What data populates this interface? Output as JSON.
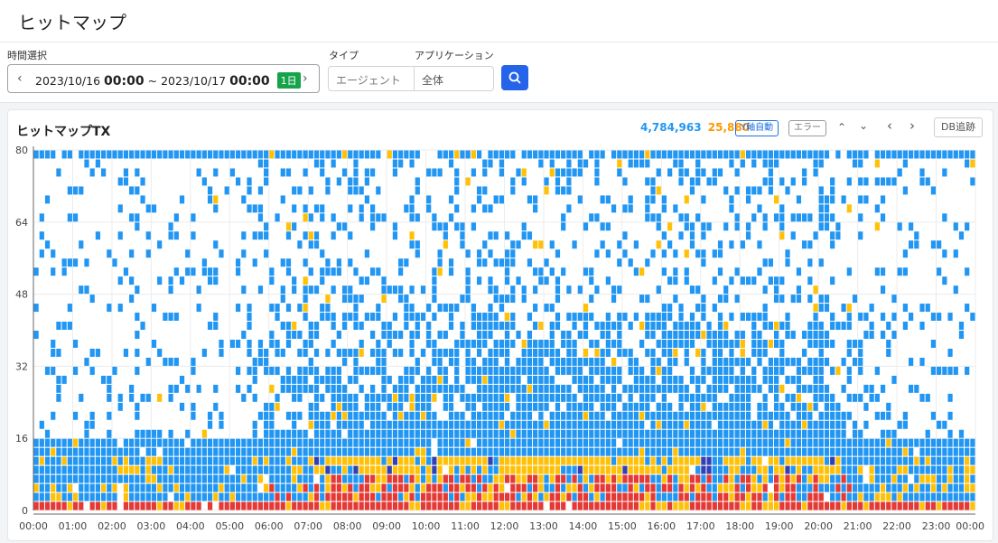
{
  "header": {
    "title": "ヒットマップ"
  },
  "filters": {
    "time_label": "時間選択",
    "start_date": "2023/10/16",
    "start_time": "00:00",
    "separator": "~",
    "end_date": "2023/10/17",
    "end_time": "00:00",
    "range_badge": "1日",
    "type_label": "タイプ",
    "type_value": "エージェント",
    "app_label": "アプリケーション",
    "app_value": "全体"
  },
  "card": {
    "title": "ヒットマップTX",
    "count_normal": "4,784,963",
    "count_error": "25,880",
    "y_auto_label": "Y軸自動",
    "error_label": "エラー",
    "db_trace_label": "DB追跡"
  },
  "colors": {
    "accent": "#2563eb",
    "cell_blue": "#2196f3",
    "cell_yellow": "#ffc107",
    "cell_red": "#e53935",
    "cell_navy": "#3140b4",
    "day_badge": "#16a34a"
  },
  "chart_data": {
    "type": "heatmap",
    "title": "ヒットマップTX",
    "x_tick_labels": [
      "00:00",
      "01:00",
      "02:00",
      "03:00",
      "04:00",
      "05:00",
      "06:00",
      "07:00",
      "08:00",
      "09:00",
      "10:00",
      "11:00",
      "12:00",
      "13:00",
      "14:00",
      "15:00",
      "16:00",
      "17:00",
      "18:00",
      "19:00",
      "20:00",
      "21:00",
      "22:00",
      "23:00",
      "00:00"
    ],
    "y_tick_labels": [
      "0",
      "16",
      "32",
      "48",
      "64",
      "80"
    ],
    "xlim": [
      "2023/10/16 00:00",
      "2023/10/17 00:00"
    ],
    "ylim": [
      0,
      80
    ],
    "y_bucket": 2,
    "grid": true,
    "legend": "none",
    "color_levels": [
      "blue",
      "yellow",
      "red",
      "navy"
    ],
    "seed": 12345
  }
}
